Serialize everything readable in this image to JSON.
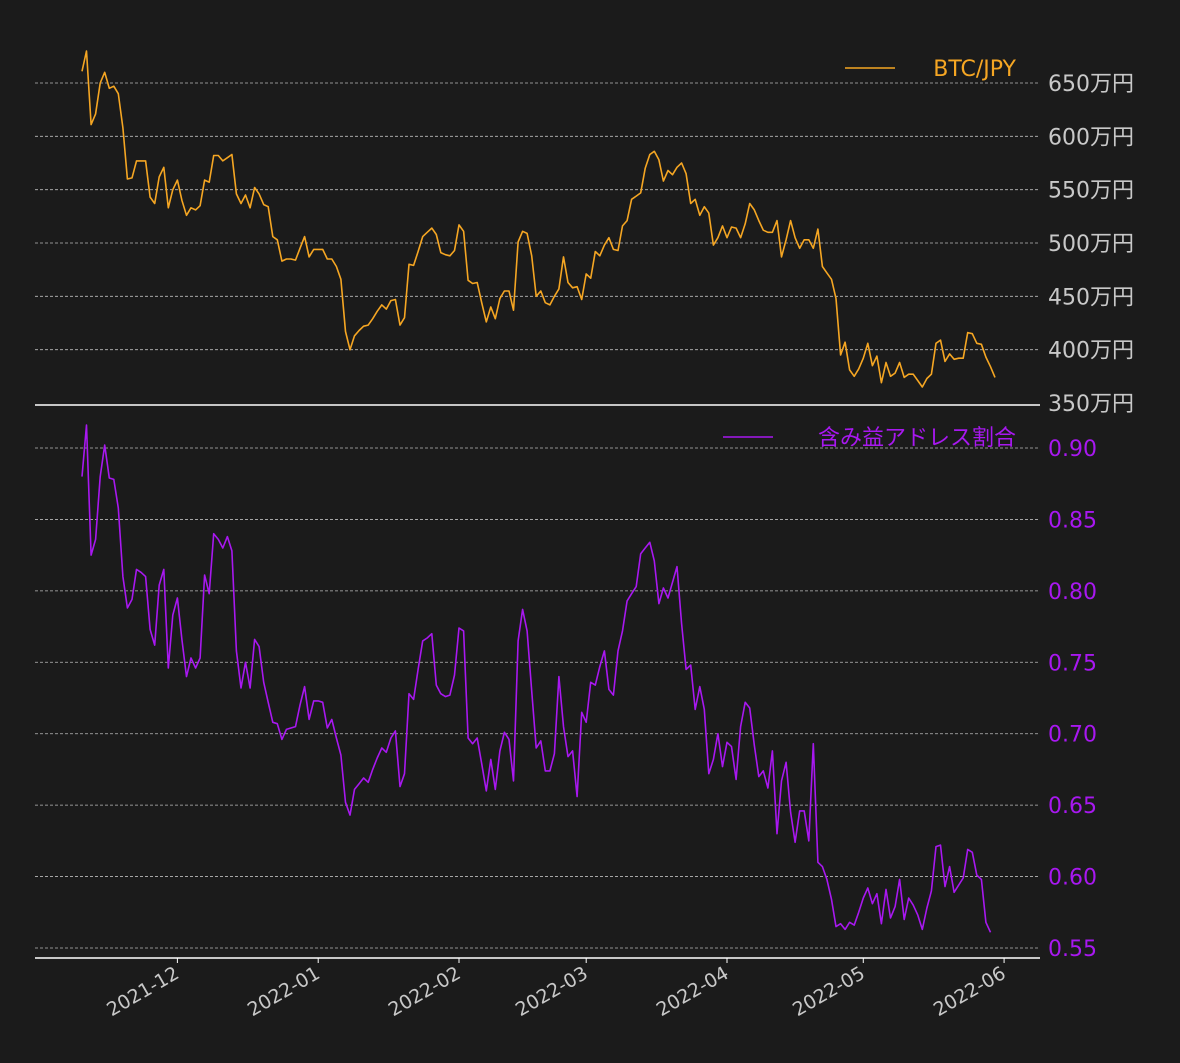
{
  "chart_data": [
    {
      "type": "line",
      "series": [
        {
          "name": "BTC/JPY",
          "color": "#f5a623"
        }
      ],
      "legend": {
        "label": "BTC/JPY",
        "position": "top-right"
      },
      "y_ticks": [
        350,
        400,
        450,
        500,
        550,
        600,
        650
      ],
      "y_tick_labels": [
        "350万円",
        "400万円",
        "450万円",
        "500万円",
        "550万円",
        "600万円",
        "650万円"
      ],
      "ylim": [
        350,
        682
      ],
      "y_unit": "万円",
      "grid": true,
      "values": [
        661,
        680,
        611,
        621,
        650,
        660,
        645,
        647,
        640,
        608,
        560,
        561,
        577,
        577,
        577,
        543,
        537,
        562,
        571,
        533,
        550,
        559,
        540,
        526,
        533,
        531,
        535,
        559,
        557,
        582,
        582,
        577,
        580,
        583,
        546,
        537,
        545,
        533,
        552,
        546,
        536,
        534,
        506,
        503,
        483,
        485,
        485,
        484,
        495,
        506,
        487,
        494,
        494,
        494,
        485,
        485,
        478,
        466,
        417,
        400,
        413,
        418,
        422,
        423,
        429,
        436,
        442,
        438,
        446,
        447,
        423,
        430,
        480,
        479,
        492,
        506,
        510,
        514,
        508,
        491,
        489,
        488,
        493,
        517,
        511,
        465,
        462,
        463,
        444,
        426,
        440,
        429,
        448,
        455,
        455,
        437,
        501,
        511,
        509,
        488,
        450,
        455,
        444,
        442,
        450,
        457,
        487,
        463,
        458,
        459,
        447,
        471,
        467,
        492,
        488,
        498,
        505,
        494,
        493,
        516,
        521,
        541,
        544,
        547,
        570,
        583,
        586,
        578,
        558,
        568,
        564,
        571,
        575,
        565,
        537,
        541,
        526,
        534,
        528,
        498,
        505,
        516,
        505,
        515,
        514,
        505,
        518,
        537,
        531,
        521,
        512,
        510,
        510,
        521,
        487,
        503,
        521,
        505,
        495,
        503,
        503,
        495,
        513,
        478,
        472,
        466,
        448,
        395,
        407,
        381,
        375,
        382,
        392,
        406,
        385,
        394,
        369,
        388,
        375,
        378,
        388,
        374,
        377,
        377,
        371,
        365,
        373,
        377,
        406,
        409,
        389,
        396,
        391,
        392,
        392,
        416,
        415,
        406,
        405,
        393,
        384,
        374
      ],
      "pct_values": [
        0.88,
        0.916,
        0.825,
        0.836,
        0.88,
        0.902,
        0.879,
        0.878,
        0.858,
        0.81,
        0.788,
        0.794,
        0.815,
        0.813,
        0.81,
        0.773,
        0.762,
        0.804,
        0.815,
        0.746,
        0.783,
        0.795,
        0.766,
        0.74,
        0.753,
        0.746,
        0.753,
        0.811,
        0.798,
        0.84,
        0.836,
        0.83,
        0.838,
        0.828,
        0.758,
        0.732,
        0.75,
        0.732,
        0.766,
        0.761,
        0.736,
        0.722,
        0.708,
        0.707,
        0.696,
        0.703,
        0.704,
        0.705,
        0.72,
        0.733,
        0.71,
        0.723,
        0.723,
        0.722,
        0.704,
        0.71,
        0.697,
        0.685,
        0.652,
        0.643,
        0.661,
        0.665,
        0.669,
        0.666,
        0.675,
        0.683,
        0.69,
        0.687,
        0.697,
        0.702,
        0.663,
        0.672,
        0.728,
        0.724,
        0.745,
        0.765,
        0.767,
        0.77,
        0.734,
        0.728,
        0.726,
        0.727,
        0.741,
        0.774,
        0.772,
        0.697,
        0.693,
        0.697,
        0.679,
        0.66,
        0.682,
        0.661,
        0.688,
        0.701,
        0.696,
        0.667,
        0.765,
        0.787,
        0.772,
        0.73,
        0.69,
        0.695,
        0.674,
        0.674,
        0.686,
        0.74,
        0.705,
        0.684,
        0.688,
        0.656,
        0.715,
        0.708,
        0.736,
        0.734,
        0.747,
        0.758,
        0.731,
        0.727,
        0.758,
        0.772,
        0.793,
        0.798,
        0.803,
        0.826,
        0.83,
        0.834,
        0.821,
        0.791,
        0.802,
        0.795,
        0.806,
        0.817,
        0.777,
        0.745,
        0.748,
        0.717,
        0.733,
        0.717,
        0.672,
        0.682,
        0.7,
        0.677,
        0.694,
        0.691,
        0.668,
        0.705,
        0.722,
        0.718,
        0.692,
        0.67,
        0.674,
        0.662,
        0.688,
        0.63,
        0.667,
        0.68,
        0.645,
        0.624,
        0.646,
        0.646,
        0.625,
        0.693,
        0.61,
        0.607,
        0.598,
        0.584,
        0.565,
        0.567,
        0.563,
        0.568,
        0.566,
        0.575,
        0.585,
        0.592,
        0.581,
        0.588,
        0.567,
        0.591,
        0.571,
        0.579,
        0.598,
        0.57,
        0.585,
        0.58,
        0.573,
        0.563,
        0.578,
        0.59,
        0.621,
        0.622,
        0.593,
        0.607,
        0.589,
        0.594,
        0.599,
        0.619,
        0.617,
        0.601,
        0.598,
        0.568,
        0.561
      ]
    },
    {
      "type": "line",
      "series": [
        {
          "name": "含み益アドレス割合",
          "color": "#a818f0"
        }
      ],
      "legend": {
        "label": "含み益アドレス割合",
        "position": "top-right"
      },
      "y_ticks": [
        0.55,
        0.6,
        0.65,
        0.7,
        0.75,
        0.8,
        0.85,
        0.9
      ],
      "y_tick_labels": [
        "0.55",
        "0.60",
        "0.65",
        "0.70",
        "0.75",
        "0.80",
        "0.85",
        "0.90"
      ],
      "ylim": [
        0.543,
        0.925
      ],
      "grid": true
    }
  ],
  "x_axis": {
    "tick_labels": [
      "2021-12",
      "2022-01",
      "2022-02",
      "2022-03",
      "2022-04",
      "2022-05",
      "2022-06"
    ],
    "start_date": "2021-11-10",
    "tick_dates": [
      "2021-12-01",
      "2022-01-01",
      "2022-02-01",
      "2022-03-01",
      "2022-04-01",
      "2022-05-01",
      "2022-06-01"
    ]
  },
  "colors": {
    "background": "#1b1b1b",
    "btc": "#f5a623",
    "pct": "#a818f0",
    "grid": "#bbbbbb",
    "axis": "#ffffff",
    "btc_ticks": "#c8c8c8"
  }
}
